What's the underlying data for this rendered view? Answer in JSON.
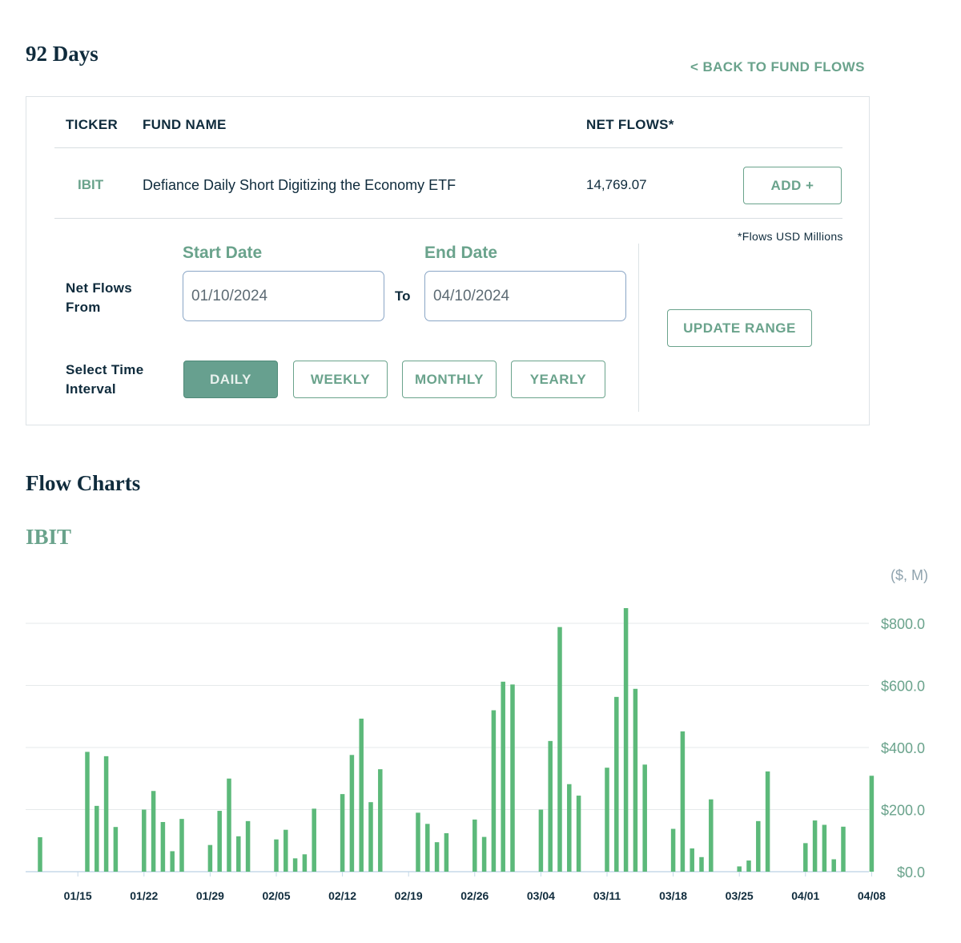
{
  "header": {
    "title": "92 Days",
    "back_link": "< BACK TO FUND FLOWS"
  },
  "table": {
    "headers": {
      "ticker": "TICKER",
      "fund_name": "FUND NAME",
      "net_flows": "NET FLOWS*"
    },
    "rows": [
      {
        "ticker": "IBIT",
        "fund_name": "Defiance Daily Short Digitizing the Economy ETF",
        "net_flows": "14,769.07",
        "action": "ADD +"
      }
    ],
    "footnote": "*Flows USD Millions"
  },
  "range": {
    "net_flows_from_label": "Net Flows From",
    "start_label": "Start Date",
    "start_value": "01/10/2024",
    "to_label": "To",
    "end_label": "End Date",
    "end_value": "04/10/2024",
    "update_button": "UPDATE RANGE",
    "interval_label": "Select Time Interval",
    "intervals": [
      "DAILY",
      "WEEKLY",
      "MONTHLY",
      "YEARLY"
    ],
    "active_interval": "DAILY"
  },
  "section": {
    "title": "Flow Charts",
    "ticker": "IBIT"
  },
  "colors": {
    "accent": "#6aa38c",
    "bar": "#5cb97a",
    "navy": "#0f2b3c"
  },
  "chart_data": {
    "type": "bar",
    "ylabel": "($, M)",
    "ylim": [
      0,
      800
    ],
    "yticks": [
      0,
      200,
      400,
      600,
      800
    ],
    "ytick_labels": [
      "$0.0",
      "$200.0",
      "$400.0",
      "$600.0",
      "$800.0"
    ],
    "xtick_labels": [
      "01/15",
      "01/22",
      "01/29",
      "02/05",
      "02/12",
      "02/19",
      "02/26",
      "03/04",
      "03/11",
      "03/18",
      "03/25",
      "04/01",
      "04/08"
    ],
    "grid": true,
    "dates": [
      "01/11",
      "01/12",
      "01/16",
      "01/17",
      "01/18",
      "01/19",
      "01/22",
      "01/23",
      "01/24",
      "01/25",
      "01/26",
      "01/29",
      "01/30",
      "01/31",
      "02/01",
      "02/02",
      "02/05",
      "02/06",
      "02/07",
      "02/08",
      "02/09",
      "02/12",
      "02/13",
      "02/14",
      "02/15",
      "02/16",
      "02/20",
      "02/21",
      "02/22",
      "02/23",
      "02/26",
      "02/27",
      "02/28",
      "02/29",
      "03/01",
      "03/04",
      "03/05",
      "03/06",
      "03/07",
      "03/08",
      "03/11",
      "03/12",
      "03/13",
      "03/14",
      "03/15",
      "03/18",
      "03/19",
      "03/20",
      "03/21",
      "03/22",
      "03/25",
      "03/26",
      "03/27",
      "03/28",
      "04/01",
      "04/02",
      "04/03",
      "04/04",
      "04/05",
      "04/08"
    ],
    "values": [
      111,
      0,
      386,
      212,
      372,
      144,
      200,
      260,
      160,
      66,
      170,
      86,
      196,
      300,
      114,
      163,
      104,
      135,
      43,
      56,
      203,
      250,
      376,
      493,
      224,
      330,
      190,
      154,
      95,
      124,
      168,
      112,
      520,
      612,
      603,
      200,
      421,
      788,
      282,
      245,
      335,
      563,
      849,
      589,
      345,
      138,
      452,
      75,
      47,
      233,
      17,
      36,
      163,
      323,
      92,
      165,
      151,
      40,
      145,
      309
    ]
  }
}
